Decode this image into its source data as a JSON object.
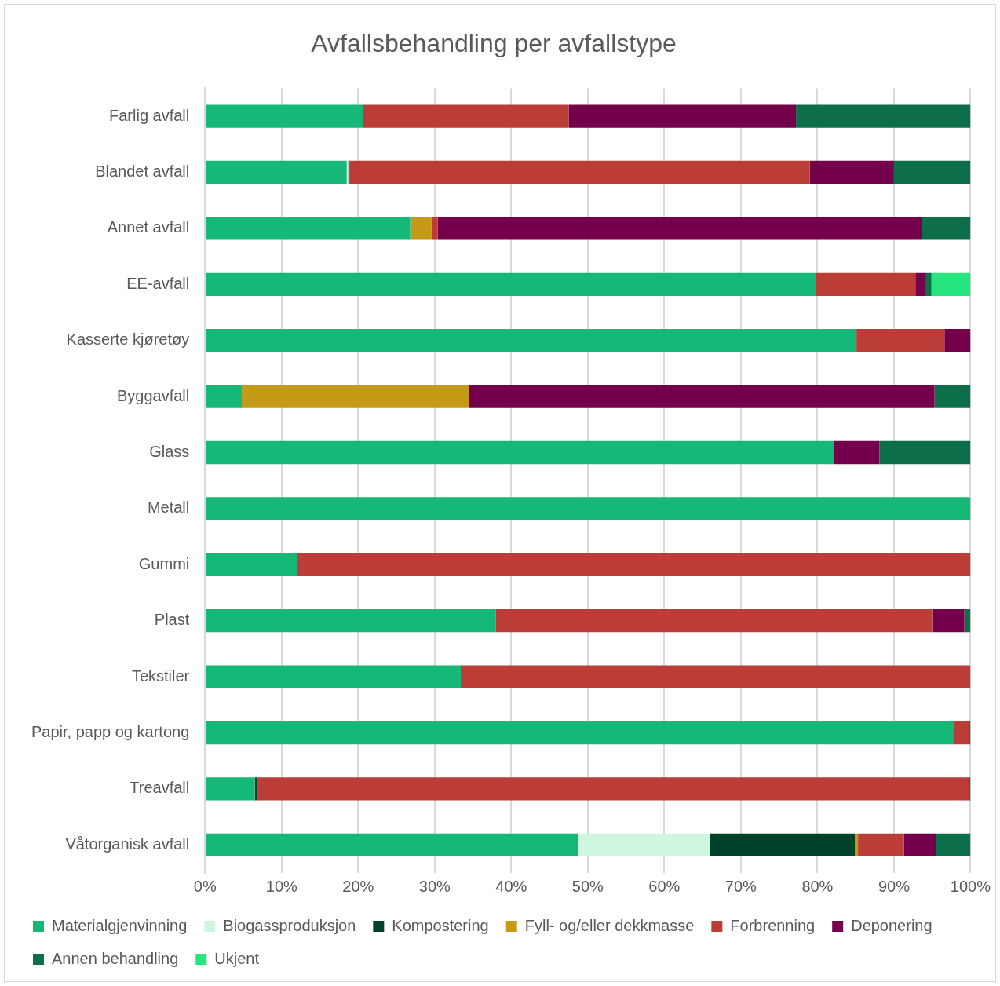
{
  "chart_data": {
    "type": "bar",
    "orientation": "horizontal",
    "stacked": true,
    "title": "Avfallsbehandling per avfallstype",
    "categories": [
      "Farlig avfall",
      "Blandet avfall",
      "Annet avfall",
      "EE-avfall",
      "Kasserte kjøretøy",
      "Byggavfall",
      "Glass",
      "Metall",
      "Gummi",
      "Plast",
      "Tekstiler",
      "Papir, papp og kartong",
      "Treavfall",
      "Våtorganisk avfall"
    ],
    "series": [
      {
        "name": "Materialgjenvinning",
        "color": "#16b877",
        "values": [
          20.6,
          18.5,
          26.8,
          79.8,
          85.1,
          4.8,
          82.2,
          100,
          12.0,
          38.0,
          33.4,
          97.9,
          6.5,
          48.7
        ]
      },
      {
        "name": "Biogassproduksjon",
        "color": "#cff7e0",
        "values": [
          null,
          0.2,
          null,
          null,
          null,
          null,
          null,
          null,
          null,
          null,
          null,
          null,
          null,
          17.3
        ]
      },
      {
        "name": "Kompostering",
        "color": "#00432a",
        "values": [
          null,
          0.2,
          null,
          null,
          null,
          null,
          null,
          null,
          null,
          null,
          null,
          null,
          0.4,
          18.9
        ]
      },
      {
        "name": "Fyll- og/eller dekkmasse",
        "color": "#c59a16",
        "values": [
          null,
          null,
          2.8,
          null,
          null,
          29.7,
          null,
          null,
          null,
          null,
          null,
          null,
          null,
          0.4
        ]
      },
      {
        "name": "Forbrenning",
        "color": "#bc3c38",
        "values": [
          26.9,
          60.1,
          0.8,
          13.0,
          11.5,
          null,
          null,
          null,
          88.0,
          57.1,
          66.6,
          1.9,
          92.9,
          6.0
        ]
      },
      {
        "name": "Deponering",
        "color": "#74004b",
        "values": [
          29.7,
          11.0,
          63.3,
          1.4,
          3.4,
          60.8,
          5.9,
          null,
          null,
          4.1,
          null,
          null,
          null,
          4.2
        ]
      },
      {
        "name": "Annen behandling",
        "color": "#0d6e4a",
        "values": [
          22.8,
          10.0,
          6.3,
          0.7,
          null,
          4.7,
          11.9,
          null,
          null,
          0.8,
          null,
          0.2,
          0.2,
          4.5
        ]
      },
      {
        "name": "Ukjent",
        "color": "#26e57f",
        "values": [
          null,
          null,
          null,
          5.1,
          null,
          null,
          null,
          null,
          null,
          null,
          null,
          null,
          null,
          null
        ]
      }
    ],
    "xlim": [
      0,
      100
    ],
    "xticks": [
      {
        "value": 0,
        "label": "0%"
      },
      {
        "value": 10,
        "label": "10%"
      },
      {
        "value": 20,
        "label": "20%"
      },
      {
        "value": 30,
        "label": "30%"
      },
      {
        "value": 40,
        "label": "40%"
      },
      {
        "value": 50,
        "label": "50%"
      },
      {
        "value": 60,
        "label": "60%"
      },
      {
        "value": 70,
        "label": "70%"
      },
      {
        "value": 80,
        "label": "80%"
      },
      {
        "value": 90,
        "label": "90%"
      },
      {
        "value": 100,
        "label": "100%"
      }
    ],
    "grid": "x",
    "legend": "bottom"
  }
}
